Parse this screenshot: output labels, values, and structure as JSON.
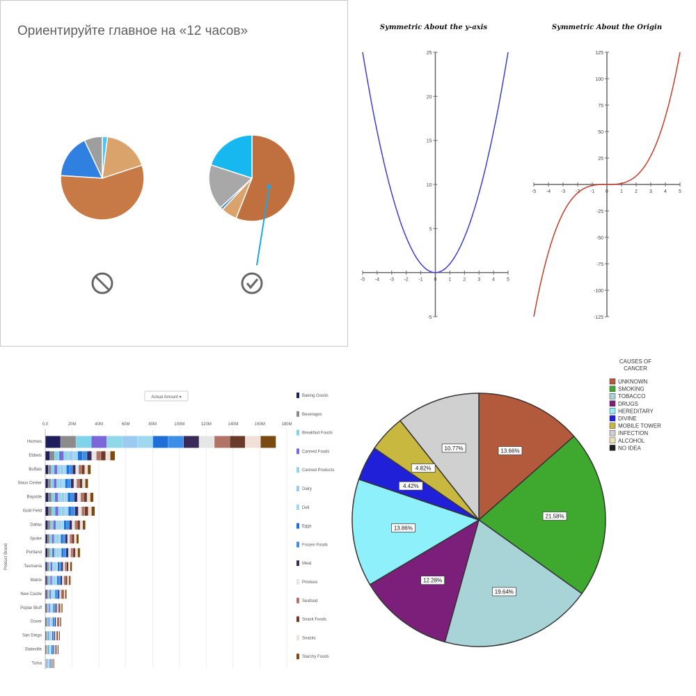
{
  "chart_data": [
    {
      "type": "pie",
      "title": "Ориентируйте главное на «12 часов»",
      "pies": [
        {
          "marker": "prohibited-icon",
          "start_deg": 0,
          "slices": [
            {
              "value": 2,
              "color": "#4fc3f7"
            },
            {
              "value": 18,
              "color": "#d9a36b"
            },
            {
              "value": 56,
              "color": "#c77a45"
            },
            {
              "value": 17,
              "color": "#2f80e0"
            },
            {
              "value": 7,
              "color": "#9e9e9e"
            }
          ]
        },
        {
          "marker": "check-icon",
          "start_deg": 0,
          "slices": [
            {
              "value": 56,
              "color": "#c0703f"
            },
            {
              "value": 6,
              "color": "#d9a36b"
            },
            {
              "value": 1,
              "color": "#2f80e0"
            },
            {
              "value": 17,
              "color": "#a8a8a8"
            },
            {
              "value": 20,
              "color": "#17b8f0"
            }
          ]
        }
      ]
    },
    {
      "type": "line",
      "title": "Symmetric About the y-axis",
      "color": "#3b3bd6",
      "x": [
        -5,
        -4,
        -3,
        -2,
        -1,
        0,
        1,
        2,
        3,
        4,
        5
      ],
      "y": [
        25,
        16,
        9,
        4,
        1,
        0,
        1,
        4,
        9,
        16,
        25
      ],
      "xticks": [
        "-5",
        "-4",
        "-3",
        "-2",
        "-1",
        "0",
        "1",
        "2",
        "3",
        "4",
        "5"
      ],
      "yticks": [
        "25",
        "20",
        "15",
        "10",
        "5",
        "-5"
      ],
      "xlim": [
        -5,
        5
      ],
      "ylim": [
        -5,
        25
      ]
    },
    {
      "type": "line",
      "title": "Symmetric About the Origin",
      "color": "#c83a2a",
      "x": [
        -5,
        -4,
        -3,
        -2,
        -1,
        0,
        1,
        2,
        3,
        4,
        5
      ],
      "y": [
        -125,
        -64,
        -27,
        -8,
        -1,
        0,
        1,
        8,
        27,
        64,
        125
      ],
      "xticks": [
        "-5",
        "-4",
        "-3",
        "-2",
        "-1",
        "0",
        "1",
        "2",
        "3",
        "4",
        "5"
      ],
      "yticks": [
        "125",
        "100",
        "75",
        "50",
        "25",
        "-25",
        "-50",
        "-75",
        "-100",
        "-125"
      ],
      "xlim": [
        -5,
        5
      ],
      "ylim": [
        -125,
        125
      ]
    },
    {
      "type": "bar",
      "orientation": "horizontal-stacked",
      "filter_label": "Actual Amount ▾",
      "axis_label": "Product Brand",
      "xticks": [
        "0.0",
        "20M",
        "40M",
        "60M",
        "80M",
        "100M",
        "120M",
        "140M",
        "160M",
        "180M"
      ],
      "xlim": [
        0,
        180
      ],
      "categories": [
        "Hermes",
        "Ebbets",
        "Buffalo",
        "Sioux Center",
        "Bayside",
        "Gold Field",
        "Dallas",
        "Spoke",
        "Portland",
        "Tasmania",
        "Matrix",
        "New Castle",
        "Poplar Bluff",
        "Dover",
        "San Diego",
        "Stateville",
        "Tulsa"
      ],
      "totals": [
        172,
        52,
        34,
        32,
        36,
        37,
        30,
        25,
        26,
        20,
        19,
        16,
        13,
        12,
        11,
        10,
        7
      ],
      "legend": [
        "Baking Goods",
        "Beverages",
        "Breakfast Foods",
        "Canned Foods",
        "Canned Products",
        "Dairy",
        "Deli",
        "Eggs",
        "Frozen Foods",
        "Meat",
        "Produce",
        "Seafood",
        "Snack Foods",
        "Snacks",
        "Starchy Foods"
      ],
      "segment_colors": [
        "#1e1e5a",
        "#8b8b8b",
        "#7fd3ea",
        "#7a68d8",
        "#8fd8e8",
        "#9ccaf0",
        "#a0d8ef",
        "#1f6fd6",
        "#3d8ee6",
        "#3a2a5a",
        "#e6e6e6",
        "#b37468",
        "#6a3a2a",
        "#f0e0d8",
        "#7a4a10"
      ]
    },
    {
      "type": "pie",
      "legend_title": "CAUSES OF CANCER",
      "slices": [
        {
          "label": "UNKNOWN",
          "value": 13.66,
          "display": "13.66%",
          "color": "#b45a3c"
        },
        {
          "label": "SMOKING",
          "value": 21.58,
          "display": "21.58%",
          "color": "#3fa82f"
        },
        {
          "label": "TOBACCO",
          "value": 19.64,
          "display": "19.64%",
          "color": "#a8d4d8"
        },
        {
          "label": "DRUGS",
          "value": 12.28,
          "display": "12.28%",
          "color": "#7b1f7a"
        },
        {
          "label": "HEREDITARY",
          "value": 13.86,
          "display": "13.86%",
          "color": "#8ef0fa"
        },
        {
          "label": "DIVINE",
          "value": 4.42,
          "display": "4.42%",
          "color": "#2020d8"
        },
        {
          "label": "MOBILE TOWER",
          "value": 4.82,
          "display": "4.82%",
          "color": "#c8b840"
        },
        {
          "label": "INFECTION",
          "value": 10.77,
          "display": "10.77%",
          "color": "#d0d0d0"
        },
        {
          "label": "ALCOHOL",
          "value": 0,
          "display": "",
          "color": "#e8e0b8"
        },
        {
          "label": "NO IDEA",
          "value": 0,
          "display": "",
          "color": "#202020"
        }
      ]
    }
  ]
}
